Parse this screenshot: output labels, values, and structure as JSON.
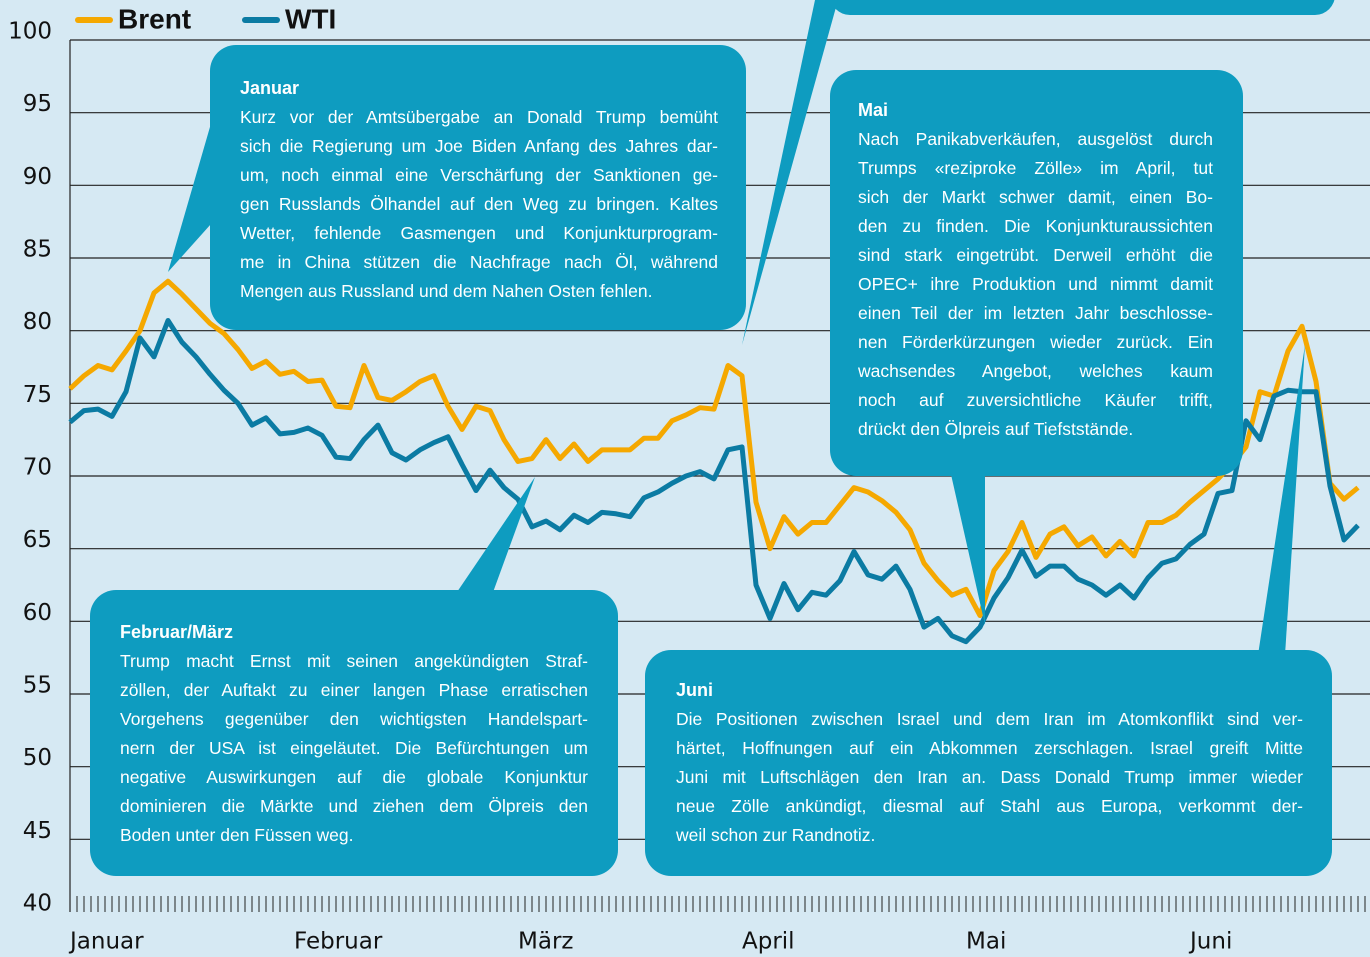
{
  "chart_data": {
    "type": "line",
    "categories": [
      "Januar",
      null,
      null,
      null,
      null,
      null,
      null,
      null,
      null,
      null,
      null,
      null,
      null,
      null,
      null,
      null,
      "Februar",
      null,
      null,
      null,
      null,
      null,
      null,
      null,
      null,
      null,
      null,
      null,
      null,
      null,
      null,
      null,
      "März",
      null,
      null,
      null,
      null,
      null,
      null,
      null,
      null,
      null,
      null,
      null,
      null,
      null,
      null,
      null,
      "April",
      null,
      null,
      null,
      null,
      null,
      null,
      null,
      null,
      null,
      null,
      null,
      null,
      null,
      null,
      null,
      "Mai",
      null,
      null,
      null,
      null,
      null,
      null,
      null,
      null,
      null,
      null,
      null,
      null,
      null,
      null,
      null,
      "Juni",
      null,
      null,
      null,
      null,
      null,
      null,
      null,
      null,
      null,
      null,
      null,
      null
    ],
    "series": [
      {
        "name": "Brent",
        "color": "#f5a800",
        "values": [
          76.0,
          76.9,
          77.6,
          77.3,
          78.6,
          80.0,
          82.6,
          83.4,
          82.5,
          81.5,
          80.5,
          79.8,
          78.7,
          77.4,
          77.9,
          77.0,
          77.2,
          76.5,
          76.6,
          74.8,
          74.7,
          77.6,
          75.4,
          75.2,
          75.8,
          76.5,
          76.9,
          74.8,
          73.2,
          74.8,
          74.5,
          72.5,
          71.0,
          71.2,
          72.5,
          71.2,
          72.2,
          71.0,
          71.8,
          71.8,
          71.8,
          72.6,
          72.6,
          73.8,
          74.2,
          74.7,
          74.6,
          77.6,
          76.9,
          68.2,
          65.0,
          67.2,
          66.0,
          66.8,
          66.8,
          68.0,
          69.2,
          68.9,
          68.3,
          67.5,
          66.3,
          64.0,
          62.8,
          61.8,
          62.2,
          60.4,
          63.5,
          64.8,
          66.8,
          64.4,
          66.0,
          66.5,
          65.2,
          65.8,
          64.5,
          65.5,
          64.5,
          66.8,
          66.8,
          67.3,
          68.2,
          69.0,
          69.8,
          70.8,
          72.0,
          75.8,
          75.5,
          78.6,
          80.3,
          76.5,
          69.5,
          68.4,
          69.2
        ]
      },
      {
        "name": "WTI",
        "color": "#0b7ba3",
        "values": [
          73.7,
          74.5,
          74.6,
          74.1,
          75.8,
          79.5,
          78.2,
          80.7,
          79.2,
          78.2,
          77.0,
          75.9,
          75.0,
          73.5,
          74.0,
          72.9,
          73.0,
          73.3,
          72.8,
          71.3,
          71.2,
          72.5,
          73.5,
          71.6,
          71.1,
          71.8,
          72.3,
          72.7,
          70.8,
          69.0,
          70.4,
          69.2,
          68.4,
          66.5,
          66.9,
          66.3,
          67.3,
          66.8,
          67.5,
          67.4,
          67.2,
          68.5,
          68.9,
          69.5,
          70.0,
          70.3,
          69.8,
          71.8,
          72.0,
          62.5,
          60.2,
          62.6,
          60.8,
          62.0,
          61.8,
          62.8,
          64.8,
          63.2,
          62.9,
          63.8,
          62.2,
          59.6,
          60.2,
          59.0,
          58.6,
          59.6,
          61.6,
          63.0,
          64.9,
          63.1,
          63.8,
          63.8,
          62.9,
          62.5,
          61.8,
          62.5,
          61.6,
          63.0,
          64.0,
          64.3,
          65.3,
          66.0,
          68.8,
          69.0,
          73.8,
          72.5,
          75.5,
          75.9,
          75.8,
          75.8,
          69.3,
          65.6,
          66.6
        ]
      }
    ],
    "ylim": [
      40,
      100
    ],
    "yticks": [
      40,
      45,
      50,
      55,
      60,
      65,
      70,
      75,
      80,
      85,
      90,
      95,
      100
    ],
    "grid": true,
    "annotations": [
      {
        "title": "Januar",
        "lines": [
          "Kurz vor der Amtsübergabe an Donald Trump bemüht",
          "sich die Regierung um Joe Biden Anfang des Jahres dar-",
          "um, noch einmal eine Verschärfung der Sanktionen ge-",
          "gen Russlands Ölhandel auf den Weg zu bringen. Kaltes",
          "Wetter, fehlende Gasmengen und Konjunkturprogram-",
          "me in China stützen die Nachfrage nach Öl, während",
          "Mengen aus Russland und dem Nahen Osten fehlen."
        ]
      },
      {
        "title": "Mai",
        "lines": [
          "Nach Panikabverkäufen, ausgelöst durch",
          "Trumps «reziproke Zölle» im April, tut",
          "sich der Markt schwer damit, einen Bo-",
          "den zu finden. Die Konjunkturaussichten",
          "sind stark eingetrübt. Derweil erhöht die",
          "OPEC+ ihre Produktion und nimmt damit",
          "einen Teil der im letzten Jahr beschlosse-",
          "nen Förderkürzungen wieder zurück. Ein",
          "wachsendes Angebot, welches kaum",
          "noch auf zuversichtliche Käufer trifft,",
          "drückt den Ölpreis auf Tiefststände."
        ]
      },
      {
        "title": "Februar/März",
        "lines": [
          "Trump macht Ernst mit seinen angekündigten Straf-",
          "zöllen, der Auftakt zu einer langen Phase erratischen",
          "Vorgehens gegenüber den wichtigsten Handelspart-",
          "nern der USA ist eingeläutet. Die Befürchtungen um",
          "negative Auswirkungen auf die globale Konjunktur",
          "dominieren die Märkte und ziehen dem Ölpreis den",
          "Boden unter den Füssen weg."
        ]
      },
      {
        "title": "Juni",
        "lines": [
          "Die Positionen zwischen Israel und dem Iran im Atomkonflikt sind ver-",
          "härtet, Hoffnungen auf ein Abkommen zerschlagen. Israel greift Mitte",
          "Juni mit Luftschlägen den Iran an. Dass Donald Trump immer wieder",
          "neue Zölle ankündigt, diesmal auf Stahl aus Europa, verkommt der-",
          "weil schon zur Randnotiz."
        ]
      }
    ]
  }
}
